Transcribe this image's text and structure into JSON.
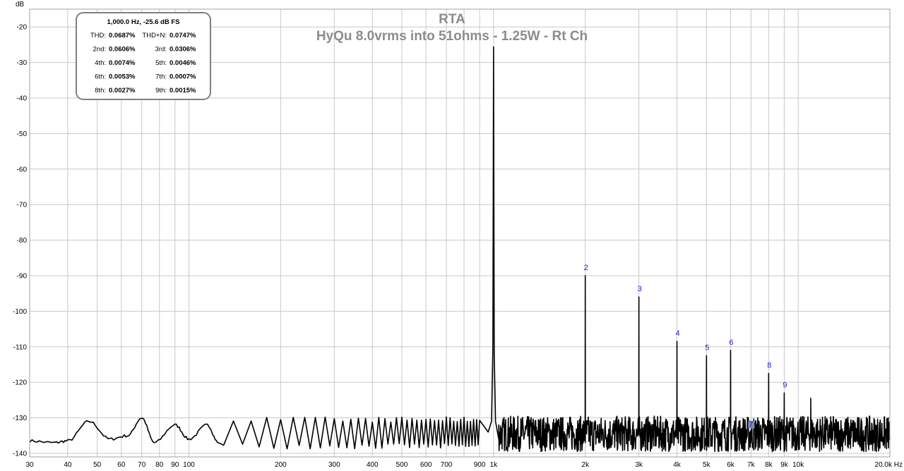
{
  "chart_data": {
    "type": "line",
    "title": "RTA",
    "subtitle": "HyQu 8.0vrms into 51ohms - 1.25W - Rt Ch",
    "ylabel": "dB",
    "xunit": "Hz",
    "xscale": "log",
    "xlim": [
      30,
      20000
    ],
    "ylim": [
      -141,
      -15
    ],
    "grid": true,
    "y_ticks": [
      -20,
      -30,
      -40,
      -50,
      -60,
      -70,
      -80,
      -90,
      -100,
      -110,
      -120,
      -130,
      -140
    ],
    "x_ticks": [
      {
        "value": 30,
        "label": "30"
      },
      {
        "value": 40,
        "label": "40"
      },
      {
        "value": 50,
        "label": "50"
      },
      {
        "value": 60,
        "label": "60"
      },
      {
        "value": 70,
        "label": "70"
      },
      {
        "value": 80,
        "label": "80"
      },
      {
        "value": 90,
        "label": "90"
      },
      {
        "value": 100,
        "label": "100"
      },
      {
        "value": 200,
        "label": "200"
      },
      {
        "value": 300,
        "label": "300"
      },
      {
        "value": 400,
        "label": "400"
      },
      {
        "value": 500,
        "label": "500"
      },
      {
        "value": 600,
        "label": "600"
      },
      {
        "value": 700,
        "label": "700"
      },
      {
        "value": 900,
        "label": "900"
      },
      {
        "value": 1000,
        "label": "1k"
      },
      {
        "value": 2000,
        "label": "2k"
      },
      {
        "value": 3000,
        "label": "3k"
      },
      {
        "value": 4000,
        "label": "4k"
      },
      {
        "value": 5000,
        "label": "5k"
      },
      {
        "value": 6000,
        "label": "6k"
      },
      {
        "value": 7000,
        "label": "7k"
      },
      {
        "value": 8000,
        "label": "8k"
      },
      {
        "value": 9000,
        "label": "9k"
      },
      {
        "value": 10000,
        "label": "10k"
      },
      {
        "value": 20000,
        "label": "20.0k Hz"
      }
    ],
    "noise_floor": {
      "low_freq_bumps": [
        {
          "x": 30,
          "y": -136.5
        },
        {
          "x": 36,
          "y": -137
        },
        {
          "x": 40,
          "y": -136.5
        },
        {
          "x": 47,
          "y": -131
        },
        {
          "x": 55,
          "y": -136
        },
        {
          "x": 63,
          "y": -135
        },
        {
          "x": 70,
          "y": -130
        },
        {
          "x": 77,
          "y": -137
        },
        {
          "x": 90,
          "y": -132
        },
        {
          "x": 100,
          "y": -136
        },
        {
          "x": 115,
          "y": -132
        },
        {
          "x": 125,
          "y": -137
        }
      ],
      "comb_start": 140,
      "comb_spacing": 20,
      "comb_end": 900,
      "comb_peak_db": -130.5,
      "comb_trough_db": -138,
      "hf_band_db": [
        -139.5,
        -129.5
      ]
    },
    "series": [
      {
        "x": 1000,
        "y": -25.6
      },
      {
        "x": 2000,
        "y": -90
      },
      {
        "x": 3000,
        "y": -96
      },
      {
        "x": 4000,
        "y": -108.5
      },
      {
        "x": 5000,
        "y": -112.5
      },
      {
        "x": 6000,
        "y": -111
      },
      {
        "x": 7000,
        "y": -132
      },
      {
        "x": 8000,
        "y": -117.5
      },
      {
        "x": 9000,
        "y": -123
      },
      {
        "x": 11000,
        "y": -124.5
      }
    ],
    "harmonic_labels": [
      {
        "label": "2",
        "x": 2000,
        "y": -90
      },
      {
        "label": "3",
        "x": 3000,
        "y": -96
      },
      {
        "label": "4",
        "x": 4000,
        "y": -108.5
      },
      {
        "label": "5",
        "x": 5000,
        "y": -112.5
      },
      {
        "label": "6",
        "x": 6000,
        "y": -111
      },
      {
        "label": "7",
        "x": 7000,
        "y": -132
      },
      {
        "label": "8",
        "x": 8000,
        "y": -117.5
      },
      {
        "label": "9",
        "x": 9000,
        "y": -123
      }
    ],
    "info_box": {
      "header": "1,000.0 Hz, -25.6 dB FS",
      "rows": [
        [
          {
            "k": "THD:",
            "v": "0.0687%"
          },
          {
            "k": "THD+N:",
            "v": "0.0747%"
          }
        ],
        [
          {
            "k": "2nd:",
            "v": "0.0606%"
          },
          {
            "k": "3rd:",
            "v": "0.0306%"
          }
        ],
        [
          {
            "k": "4th:",
            "v": "0.0074%"
          },
          {
            "k": "5th:",
            "v": "0.0046%"
          }
        ],
        [
          {
            "k": "6th:",
            "v": "0.0053%"
          },
          {
            "k": "7th:",
            "v": "0.0007%"
          }
        ],
        [
          {
            "k": "8th:",
            "v": "0.0027%"
          },
          {
            "k": "9th:",
            "v": "0.0015%"
          }
        ]
      ]
    },
    "colors": {
      "trace": "#000000",
      "grid": "#c8c8c8",
      "harmonic_label": "#1a1adb",
      "title": "#8c8c8c",
      "box_border": "#808080"
    }
  }
}
